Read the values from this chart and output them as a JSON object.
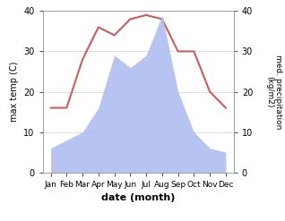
{
  "months": [
    "Jan",
    "Feb",
    "Mar",
    "Apr",
    "May",
    "Jun",
    "Jul",
    "Aug",
    "Sep",
    "Oct",
    "Nov",
    "Dec"
  ],
  "temperature": [
    16,
    16,
    28,
    36,
    34,
    38,
    39,
    38,
    30,
    30,
    20,
    16
  ],
  "precipitation": [
    6,
    8,
    10,
    16,
    29,
    26,
    29,
    39,
    20,
    10,
    6,
    5
  ],
  "temp_color": "#c95c5c",
  "precip_color": "#b0bef0",
  "ylim_left": [
    0,
    40
  ],
  "ylim_right": [
    0,
    40
  ],
  "yticks": [
    0,
    10,
    20,
    30,
    40
  ],
  "xlabel": "date (month)",
  "ylabel_left": "max temp (C)",
  "ylabel_right": "med. precipitation\n(kg/m2)",
  "bg_color": "#ffffff",
  "grid_color": "#d0d0d0"
}
